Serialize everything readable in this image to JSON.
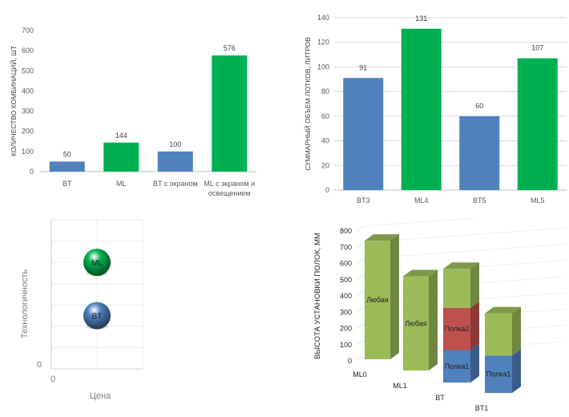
{
  "colors": {
    "blue": "#4f81bd",
    "green": "#00b050",
    "grid": "#d9d9d9",
    "axis": "#bfbfbf"
  },
  "chart_data": [
    {
      "type": "bar",
      "categories": [
        "BT",
        "ML",
        "BT с экраном",
        "ML с экраном и освещением"
      ],
      "category_lines": [
        [
          "BT"
        ],
        [
          "ML"
        ],
        [
          "BT с экраном"
        ],
        [
          "ML с экраном и",
          "освещением"
        ]
      ],
      "values": [
        50,
        144,
        100,
        576
      ],
      "bar_colors": [
        "#4f81bd",
        "#00b050",
        "#4f81bd",
        "#00b050"
      ],
      "ylabel": "КОЛИЧЕСТВО КОМБИНАЦИЙ, ШТ",
      "ylim": [
        0,
        700
      ],
      "yticks": [
        0,
        100,
        200,
        300,
        400,
        500,
        600,
        700
      ],
      "grid": false,
      "data_labels": [
        "50",
        "144",
        "100",
        "576"
      ]
    },
    {
      "type": "bar",
      "categories": [
        "BT3",
        "ML4",
        "BT5",
        "ML5"
      ],
      "values": [
        91,
        131,
        60,
        107
      ],
      "bar_colors": [
        "#4f81bd",
        "#00b050",
        "#4f81bd",
        "#00b050"
      ],
      "ylabel": "СУММАРНЫЙ ОБЪЕМ ЛОТКОВ, ЛИТРОВ",
      "ylim": [
        0,
        140
      ],
      "yticks": [
        0,
        20,
        40,
        60,
        80,
        100,
        120,
        140
      ],
      "grid": true,
      "data_labels": [
        "91",
        "131",
        "60",
        "107"
      ]
    },
    {
      "type": "scatter",
      "xlabel": "Цена",
      "ylabel": "Технологичность",
      "x_zero": "0",
      "y_zero": "0",
      "points": [
        {
          "label": "ML",
          "x": 1,
          "y": 5,
          "color": "#00b050"
        },
        {
          "label": "BT",
          "x": 1,
          "y": 2.5,
          "color": "#4f81bd"
        }
      ],
      "ylim": [
        0,
        7
      ],
      "xlim": [
        0,
        2
      ],
      "grid": true
    },
    {
      "type": "bar",
      "stacked": true,
      "categories": [
        "ML0",
        "ML1",
        "BT",
        "BT1"
      ],
      "ylabel": "ВЫСОТА УСТАНОВКИ ПОЛОК, ММ",
      "ylim": [
        0,
        800
      ],
      "yticks": [
        0,
        100,
        200,
        300,
        400,
        500,
        600,
        700,
        800
      ],
      "stacks": [
        [
          {
            "label": "Любая",
            "value": 730,
            "color": "#9bbb59"
          }
        ],
        [
          {
            "label": "Любая",
            "value": 580,
            "color": "#9bbb59"
          }
        ],
        [
          {
            "label": "Полка1",
            "value": 200,
            "color": "#4f81bd"
          },
          {
            "label": "Полка2",
            "value": 260,
            "color": "#c0504d"
          },
          {
            "label": "",
            "value": 240,
            "color": "#9bbb59"
          }
        ],
        [
          {
            "label": "Полка1",
            "value": 230,
            "color": "#4f81bd"
          },
          {
            "label": "",
            "value": 260,
            "color": "#9bbb59"
          }
        ]
      ]
    }
  ]
}
